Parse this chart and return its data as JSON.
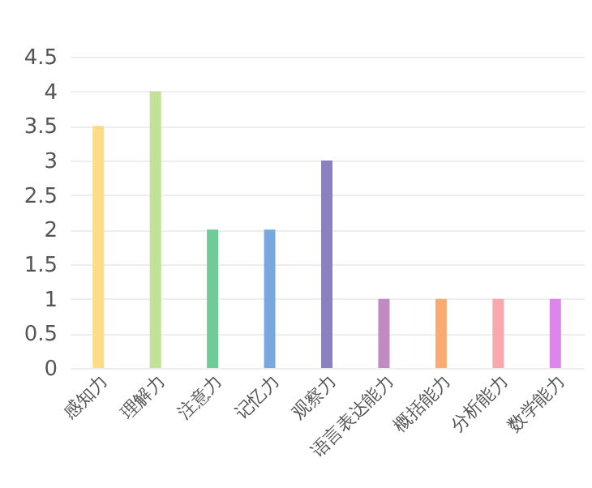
{
  "chart_data": {
    "type": "bar",
    "categories": [
      "感知力",
      "理解力",
      "注意力",
      "记忆力",
      "观察力",
      "语言表达能力",
      "概括能力",
      "分析能力",
      "数学能力"
    ],
    "values": [
      3.5,
      4,
      2,
      2,
      3,
      1,
      1,
      1,
      1
    ],
    "colors": [
      "#fddc85",
      "#c0e397",
      "#71cb98",
      "#79a7e0",
      "#8b80c2",
      "#c389c3",
      "#f9ab72",
      "#f8a9ae",
      "#dc86ec"
    ],
    "ylim": [
      0,
      4.5
    ],
    "yticks": [
      0,
      0.5,
      1,
      1.5,
      2,
      2.5,
      3,
      3.5,
      4,
      4.5
    ],
    "grid": "y"
  }
}
